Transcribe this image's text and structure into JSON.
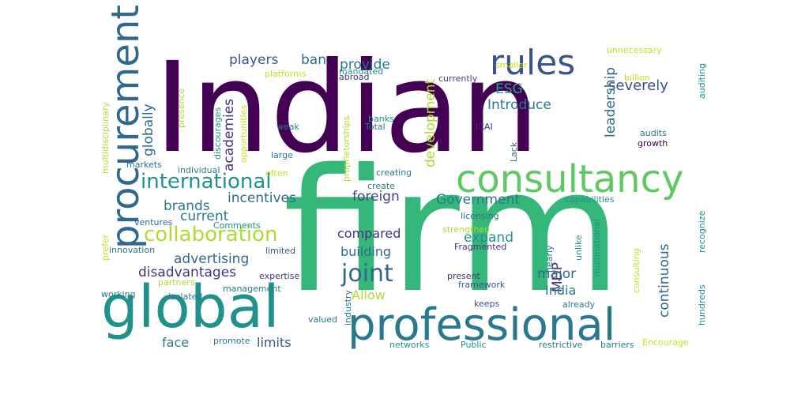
{
  "words": [
    {
      "text": "Indian",
      "color": "#440154",
      "size": 158,
      "vertical": false
    },
    {
      "text": "firm",
      "color": "#35b779",
      "size": 215,
      "vertical": false
    },
    {
      "text": "global",
      "color": "#21918c",
      "size": 74,
      "vertical": false
    },
    {
      "text": "professional",
      "color": "#2a788e",
      "size": 56,
      "vertical": false
    },
    {
      "text": "consultancy",
      "color": "#5ec962",
      "size": 48,
      "vertical": false
    },
    {
      "text": "procurement",
      "color": "#31688e",
      "size": 48,
      "vertical": true
    },
    {
      "text": "rules",
      "color": "#3b528b",
      "size": 44,
      "vertical": false
    },
    {
      "text": "international",
      "color": "#21918c",
      "size": 26,
      "vertical": false
    },
    {
      "text": "collaboration",
      "color": "#addc30",
      "size": 26,
      "vertical": false
    },
    {
      "text": "joint",
      "color": "#31688e",
      "size": 30,
      "vertical": false
    },
    {
      "text": "severely",
      "color": "#3b528b",
      "size": 18,
      "vertical": false
    },
    {
      "text": "Introduce",
      "color": "#2a788e",
      "size": 17,
      "vertical": false
    },
    {
      "text": "ESG",
      "color": "#22a884",
      "size": 17,
      "vertical": false
    },
    {
      "text": "players",
      "color": "#3b528b",
      "size": 17,
      "vertical": false
    },
    {
      "text": "ban",
      "color": "#31688e",
      "size": 17,
      "vertical": false
    },
    {
      "text": "provide",
      "color": "#2a788e",
      "size": 17,
      "vertical": false
    },
    {
      "text": "academies",
      "color": "#46327e",
      "size": 17,
      "vertical": true
    },
    {
      "text": "globally",
      "color": "#31688e",
      "size": 17,
      "vertical": true
    },
    {
      "text": "development",
      "color": "#addc30",
      "size": 17,
      "vertical": true
    },
    {
      "text": "leadership",
      "color": "#31688e",
      "size": 17,
      "vertical": true
    },
    {
      "text": "incentives",
      "color": "#31688e",
      "size": 17,
      "vertical": false
    },
    {
      "text": "Government",
      "color": "#2a788e",
      "size": 17,
      "vertical": false
    },
    {
      "text": "foreign",
      "color": "#414487",
      "size": 17,
      "vertical": false
    },
    {
      "text": "brands",
      "color": "#2a788e",
      "size": 17,
      "vertical": false
    },
    {
      "text": "current",
      "color": "#2a788e",
      "size": 17,
      "vertical": false
    },
    {
      "text": "compared",
      "color": "#46327e",
      "size": 16,
      "vertical": false
    },
    {
      "text": "building",
      "color": "#31688e",
      "size": 16,
      "vertical": false
    },
    {
      "text": "expand",
      "color": "#21918c",
      "size": 17,
      "vertical": false
    },
    {
      "text": "MDP",
      "color": "#46327e",
      "size": 17,
      "vertical": true
    },
    {
      "text": "continuous",
      "color": "#31688e",
      "size": 17,
      "vertical": true
    },
    {
      "text": "advertising",
      "color": "#31688e",
      "size": 17,
      "vertical": false
    },
    {
      "text": "disadvantages",
      "color": "#46327e",
      "size": 17,
      "vertical": false
    },
    {
      "text": "major",
      "color": "#31688e",
      "size": 17,
      "vertical": false
    },
    {
      "text": "India",
      "color": "#2a788e",
      "size": 16,
      "vertical": false
    },
    {
      "text": "Allow",
      "color": "#addc30",
      "size": 16,
      "vertical": false
    },
    {
      "text": "face",
      "color": "#2a788e",
      "size": 16,
      "vertical": false
    },
    {
      "text": "limits",
      "color": "#3b528b",
      "size": 16,
      "vertical": false
    },
    {
      "text": "unnecessary",
      "color": "#c8e020",
      "size": 11,
      "vertical": false
    },
    {
      "text": "smaller",
      "color": "#c8e020",
      "size": 11,
      "vertical": false
    },
    {
      "text": "mandated",
      "color": "#21918c",
      "size": 11,
      "vertical": false
    },
    {
      "text": "billion",
      "color": "#c8e020",
      "size": 11,
      "vertical": false
    },
    {
      "text": "auditing",
      "color": "#21918c",
      "size": 11,
      "vertical": true
    },
    {
      "text": "multidisciplinary",
      "color": "#addc30",
      "size": 11,
      "vertical": true
    },
    {
      "text": "presence",
      "color": "#addc30",
      "size": 11,
      "vertical": true
    },
    {
      "text": "discourages",
      "color": "#21918c",
      "size": 11,
      "vertical": true
    },
    {
      "text": "opportunities",
      "color": "#c8e020",
      "size": 11,
      "vertical": true
    },
    {
      "text": "proprietorships",
      "color": "#addc30",
      "size": 11,
      "vertical": true
    },
    {
      "text": "platforms",
      "color": "#c8e020",
      "size": 11,
      "vertical": false
    },
    {
      "text": "abroad",
      "color": "#46327e",
      "size": 11,
      "vertical": false
    },
    {
      "text": "currently",
      "color": "#414487",
      "size": 11,
      "vertical": false
    },
    {
      "text": "banks",
      "color": "#21918c",
      "size": 11,
      "vertical": false
    },
    {
      "text": "Total",
      "color": "#2a788e",
      "size": 11,
      "vertical": false
    },
    {
      "text": "weak",
      "color": "#2a788e",
      "size": 11,
      "vertical": false
    },
    {
      "text": "ICAI",
      "color": "#46327e",
      "size": 11,
      "vertical": false
    },
    {
      "text": "Lack",
      "color": "#31688e",
      "size": 11,
      "vertical": true
    },
    {
      "text": "audits",
      "color": "#2a788e",
      "size": 11,
      "vertical": false
    },
    {
      "text": "growth",
      "color": "#440154",
      "size": 11,
      "vertical": false
    },
    {
      "text": "large",
      "color": "#2a788e",
      "size": 11,
      "vertical": false
    },
    {
      "text": "markets",
      "color": "#2a788e",
      "size": 11,
      "vertical": false
    },
    {
      "text": "individual",
      "color": "#2a788e",
      "size": 11,
      "vertical": false
    },
    {
      "text": "often",
      "color": "#c8e020",
      "size": 11,
      "vertical": false
    },
    {
      "text": "creating",
      "color": "#2a788e",
      "size": 11,
      "vertical": false
    },
    {
      "text": "create",
      "color": "#2a788e",
      "size": 11,
      "vertical": false
    },
    {
      "text": "capabilities",
      "color": "#21918c",
      "size": 11,
      "vertical": false
    },
    {
      "text": "recognize",
      "color": "#21918c",
      "size": 11,
      "vertical": true
    },
    {
      "text": "licensing",
      "color": "#2a788e",
      "size": 11,
      "vertical": false
    },
    {
      "text": "strengthen",
      "color": "#addc30",
      "size": 11,
      "vertical": false
    },
    {
      "text": "prefer",
      "color": "#c8e020",
      "size": 11,
      "vertical": true
    },
    {
      "text": "ventures",
      "color": "#31688e",
      "size": 11,
      "vertical": false
    },
    {
      "text": "Comments",
      "color": "#21918c",
      "size": 11,
      "vertical": false
    },
    {
      "text": "innovation",
      "color": "#2a788e",
      "size": 11,
      "vertical": false
    },
    {
      "text": "limited",
      "color": "#3b528b",
      "size": 11,
      "vertical": false
    },
    {
      "text": "Fragmented",
      "color": "#46327e",
      "size": 11,
      "vertical": false
    },
    {
      "text": "multinational",
      "color": "#21918c",
      "size": 11,
      "vertical": true
    },
    {
      "text": "unlike",
      "color": "#21918c",
      "size": 11,
      "vertical": true
    },
    {
      "text": "nearly",
      "color": "#2a788e",
      "size": 11,
      "vertical": true
    },
    {
      "text": "partners",
      "color": "#addc30",
      "size": 11,
      "vertical": false
    },
    {
      "text": "expertise",
      "color": "#46327e",
      "size": 11,
      "vertical": false
    },
    {
      "text": "present",
      "color": "#46327e",
      "size": 11,
      "vertical": false
    },
    {
      "text": "framework",
      "color": "#3b528b",
      "size": 11,
      "vertical": false
    },
    {
      "text": "consulting",
      "color": "#c8e020",
      "size": 11,
      "vertical": true
    },
    {
      "text": "hundreds",
      "color": "#21918c",
      "size": 11,
      "vertical": true
    },
    {
      "text": "working",
      "color": "#2a788e",
      "size": 11,
      "vertical": false
    },
    {
      "text": "management",
      "color": "#2a788e",
      "size": 11,
      "vertical": false
    },
    {
      "text": "isolated",
      "color": "#2a788e",
      "size": 11,
      "vertical": false
    },
    {
      "text": "industry",
      "color": "#2a788e",
      "size": 11,
      "vertical": true
    },
    {
      "text": "keeps",
      "color": "#3b528b",
      "size": 11,
      "vertical": false
    },
    {
      "text": "already",
      "color": "#2a788e",
      "size": 11,
      "vertical": false
    },
    {
      "text": "valued",
      "color": "#2a788e",
      "size": 11,
      "vertical": false
    },
    {
      "text": "promote",
      "color": "#2a788e",
      "size": 11,
      "vertical": false
    },
    {
      "text": "networks",
      "color": "#21918c",
      "size": 11,
      "vertical": false
    },
    {
      "text": "Public",
      "color": "#21918c",
      "size": 11,
      "vertical": false
    },
    {
      "text": "restrictive",
      "color": "#2a788e",
      "size": 11,
      "vertical": false
    },
    {
      "text": "barriers",
      "color": "#2a788e",
      "size": 11,
      "vertical": false
    },
    {
      "text": "Encourage",
      "color": "#c8e020",
      "size": 11,
      "vertical": false
    }
  ]
}
